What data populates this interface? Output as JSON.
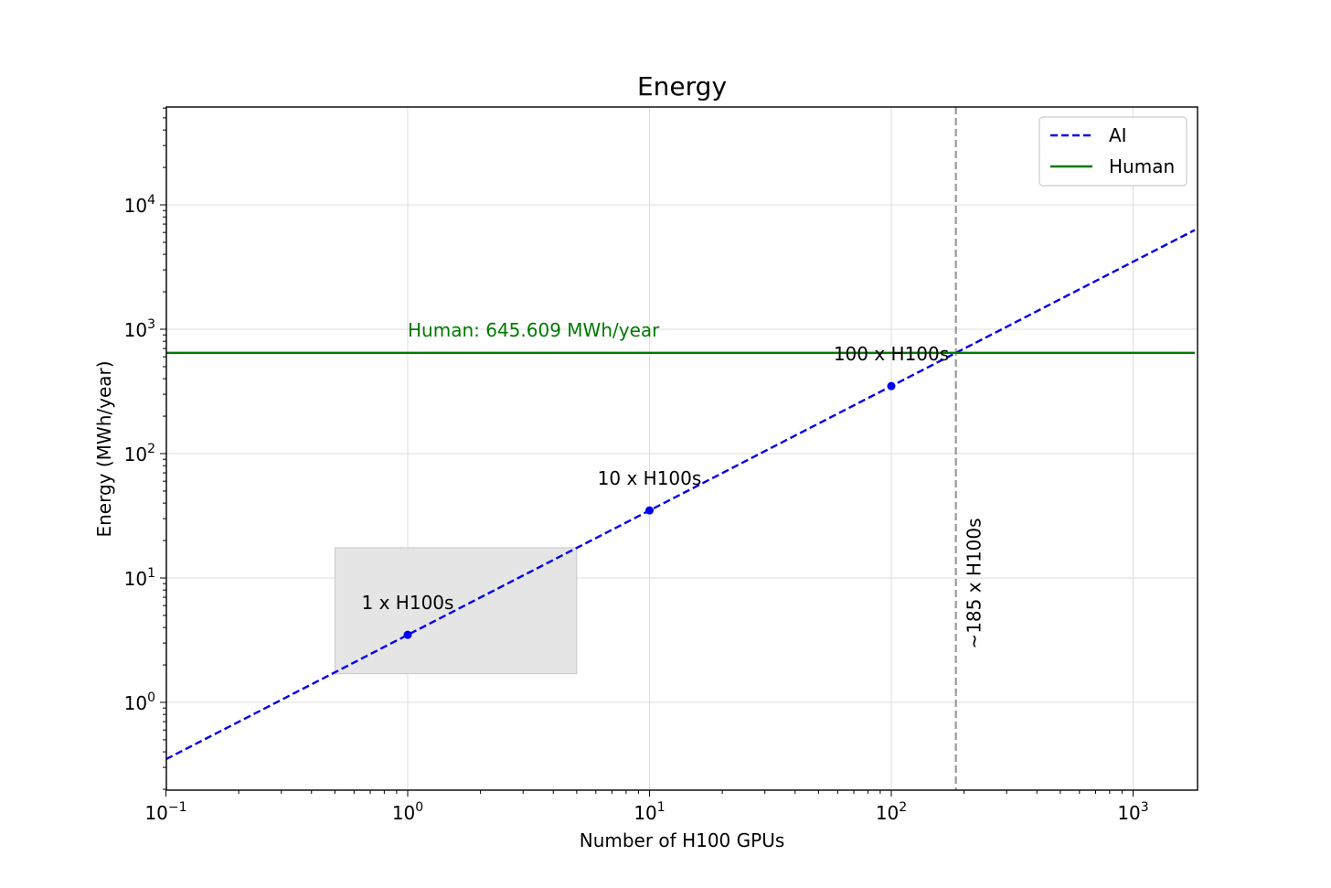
{
  "chart_data": {
    "type": "line",
    "title": "Energy",
    "xlabel": "Number of H100 GPUs",
    "ylabel": "Energy (MWh/year)",
    "x_scale": "log",
    "y_scale": "log",
    "xlim": [
      0.1,
      1800
    ],
    "ylim": [
      0.2,
      60000
    ],
    "grid": true,
    "legend_position": "top-right",
    "x_ticks": [
      {
        "value": 0.1,
        "base": "10",
        "exp": "−1"
      },
      {
        "value": 1,
        "base": "10",
        "exp": "0"
      },
      {
        "value": 10,
        "base": "10",
        "exp": "1"
      },
      {
        "value": 100,
        "base": "10",
        "exp": "2"
      },
      {
        "value": 1000,
        "base": "10",
        "exp": "3"
      }
    ],
    "y_ticks": [
      {
        "value": 1,
        "base": "10",
        "exp": "0"
      },
      {
        "value": 10,
        "base": "10",
        "exp": "1"
      },
      {
        "value": 100,
        "base": "10",
        "exp": "2"
      },
      {
        "value": 1000,
        "base": "10",
        "exp": "3"
      },
      {
        "value": 10000,
        "base": "10",
        "exp": "4"
      }
    ],
    "series": [
      {
        "name": "AI",
        "color": "#0000ee",
        "style": "dashed",
        "x": [
          0.1,
          1800
        ],
        "y": [
          0.349,
          6282
        ]
      },
      {
        "name": "Human",
        "color": "#007a00",
        "style": "solid",
        "x": [
          0.1,
          1800
        ],
        "y": [
          645.609,
          645.609
        ]
      }
    ],
    "points": [
      {
        "x": 1,
        "y": 3.49,
        "label": "1 x H100s"
      },
      {
        "x": 10,
        "y": 34.9,
        "label": "10 x H100s"
      },
      {
        "x": 100,
        "y": 349,
        "label": "100 x H100s"
      }
    ],
    "annotations": {
      "human_label": "Human: 645.609 MWh/year",
      "vline_label": "~185 x H100s",
      "vline_x": 185,
      "vline_color": "#999999",
      "highlight_box": {
        "x": [
          0.5,
          5
        ],
        "y": [
          1.7,
          17.5
        ],
        "color": "#e5e5e5"
      }
    }
  }
}
